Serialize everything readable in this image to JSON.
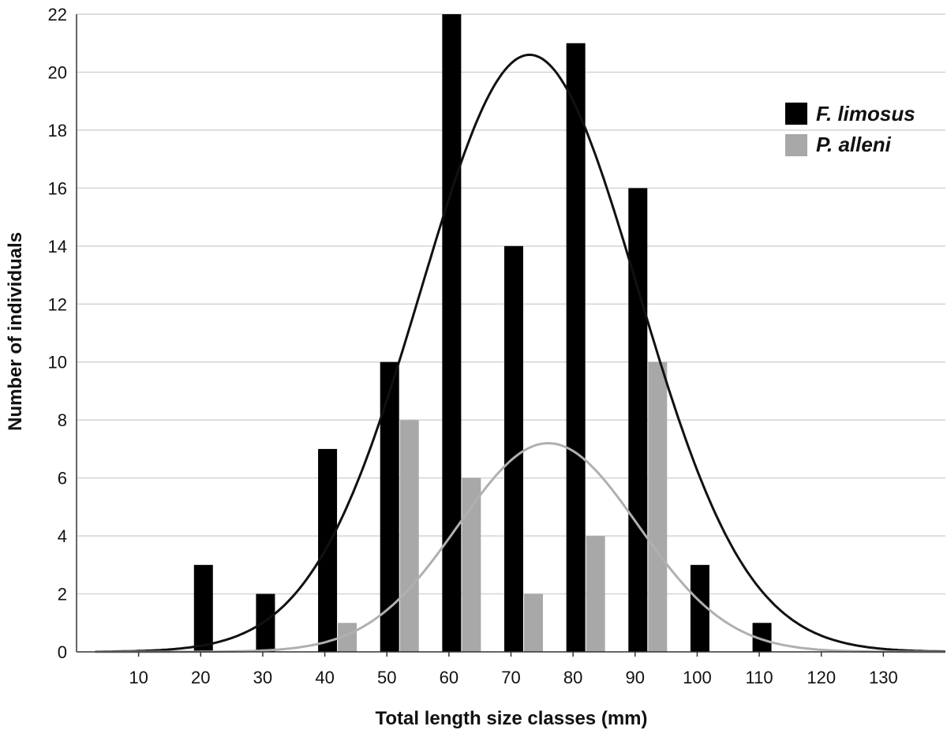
{
  "chart_data": {
    "type": "bar",
    "xlabel": "Total length size classes (mm)",
    "ylabel": "Number of individuals",
    "x_ticks": [
      10,
      20,
      30,
      40,
      50,
      60,
      70,
      80,
      90,
      100,
      110,
      120,
      130
    ],
    "y_ticks": [
      0,
      2,
      4,
      6,
      8,
      10,
      12,
      14,
      16,
      18,
      20,
      22
    ],
    "xlim": [
      0,
      140
    ],
    "ylim": [
      0,
      22
    ],
    "grid": "horizontal",
    "legend_position": "top-right",
    "categories": [
      20,
      30,
      40,
      50,
      60,
      70,
      80,
      90,
      100,
      110
    ],
    "series": [
      {
        "name": "F. limosus",
        "color": "#000000",
        "values": [
          3,
          2,
          7,
          10,
          22,
          14,
          21,
          16,
          3,
          1
        ],
        "fit_curve": {
          "type": "normal",
          "mean": 73,
          "sd": 17.5,
          "peak": 20.6
        }
      },
      {
        "name": "P. alleni",
        "color": "#a8a8a8",
        "values": [
          0,
          0,
          1,
          8,
          6,
          2,
          4,
          10,
          0,
          0
        ],
        "fit_curve": {
          "type": "normal",
          "mean": 76,
          "sd": 14.5,
          "peak": 7.2
        }
      }
    ]
  }
}
